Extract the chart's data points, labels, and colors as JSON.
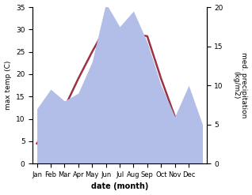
{
  "months": [
    "Jan",
    "Feb",
    "Mar",
    "Apr",
    "May",
    "Jun",
    "Jul",
    "Aug",
    "Sep",
    "Oct",
    "Nov",
    "Dec"
  ],
  "temp": [
    4.5,
    9.0,
    12.5,
    19.0,
    25.0,
    30.5,
    30.0,
    29.0,
    28.5,
    19.0,
    10.5,
    5.5
  ],
  "precip": [
    7.0,
    9.5,
    8.0,
    9.0,
    13.0,
    20.5,
    17.5,
    19.5,
    15.5,
    10.0,
    6.0,
    10.0,
    5.0
  ],
  "precip_x": [
    0,
    1,
    2,
    3,
    4,
    5,
    6,
    7,
    8,
    9,
    10,
    11,
    12
  ],
  "temp_color": "#993344",
  "precip_fill_color": "#b3bee8",
  "left_ylabel": "max temp (C)",
  "right_ylabel": "med. precipitation\n(kg/m2)",
  "xlabel": "date (month)",
  "ylim_left": [
    0,
    35
  ],
  "ylim_right": [
    0,
    20
  ],
  "yticks_left": [
    0,
    5,
    10,
    15,
    20,
    25,
    30,
    35
  ],
  "yticks_right": [
    0,
    5,
    10,
    15,
    20
  ],
  "background_color": "#ffffff",
  "temp_linewidth": 1.8
}
